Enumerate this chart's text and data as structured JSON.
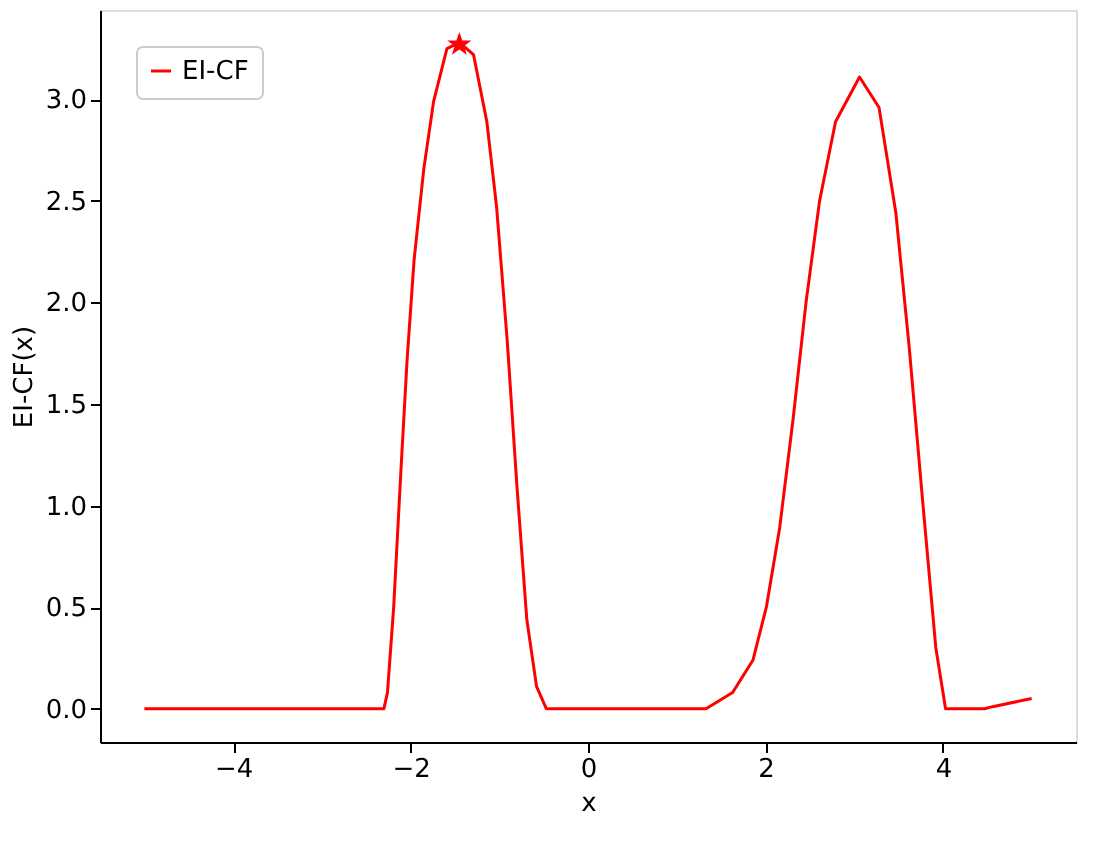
{
  "chart_data": {
    "type": "line",
    "xlabel": "x",
    "ylabel": "EI-CF(x)",
    "xlim": [
      -5.5,
      5.5
    ],
    "ylim": [
      -0.164,
      3.44
    ],
    "xticks": [
      -4,
      -2,
      0,
      2,
      4
    ],
    "yticks": [
      {
        "value": 0,
        "label": "0.0"
      },
      0.5,
      {
        "value": 1,
        "label": "1.0"
      },
      1.5,
      {
        "value": 2,
        "label": "2.0"
      },
      2.5,
      {
        "value": 3,
        "label": "3.0"
      }
    ],
    "grid": false,
    "legend": "top left",
    "marker": "none",
    "line_style": "solid",
    "series": [
      {
        "name": "EI-CF",
        "color": "#ff0000",
        "x": [
          -5,
          -2.3,
          -2.26,
          -2.19,
          -2.11,
          -2.04,
          -1.96,
          -1.85,
          -1.74,
          -1.59,
          -1.45,
          -1.29,
          -1.14,
          -1.03,
          -0.91,
          -0.8,
          -0.69,
          -0.58,
          -0.47,
          1.33,
          1.63,
          1.86,
          2.01,
          2.16,
          2.31,
          2.46,
          2.61,
          2.79,
          3.06,
          3.28,
          3.47,
          3.62,
          3.77,
          3.92,
          4.03,
          4.47,
          4.56,
          5.0
        ],
        "values": [
          0,
          0,
          0.08,
          0.5,
          1.16,
          1.71,
          2.21,
          2.66,
          2.99,
          3.25,
          3.28,
          3.22,
          2.89,
          2.47,
          1.81,
          1.09,
          0.44,
          0.11,
          0,
          0,
          0.08,
          0.24,
          0.5,
          0.89,
          1.42,
          2.01,
          2.5,
          2.89,
          3.11,
          2.96,
          2.44,
          1.78,
          1.03,
          0.3,
          0,
          0,
          0.01,
          0.05
        ]
      },
      {
        "type": "scatter",
        "marker": "star",
        "color": "#ff0000",
        "x": [
          -1.45
        ],
        "values": [
          3.27
        ]
      }
    ]
  }
}
